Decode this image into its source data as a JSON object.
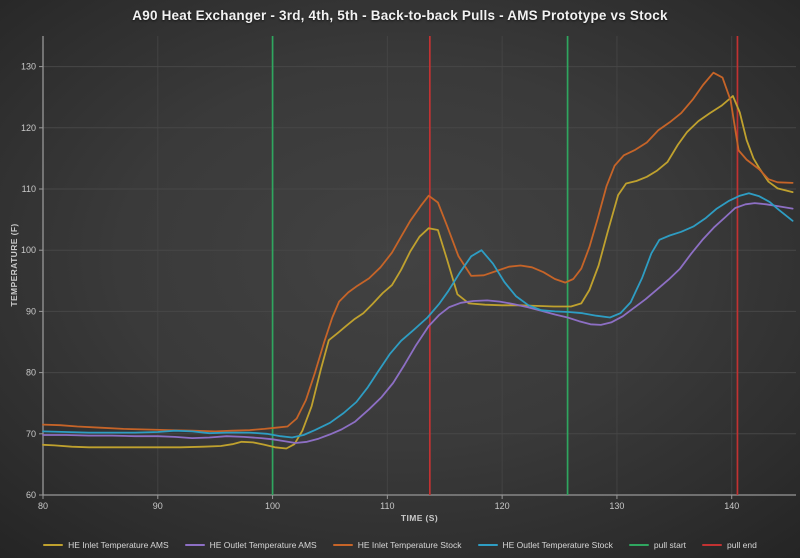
{
  "header": {
    "title": "A90 Heat Exchanger - 3rd, 4th, 5th - Back-to-back Pulls - AMS Prototype vs Stock"
  },
  "chart_data": {
    "type": "line",
    "title": "A90 Heat Exchanger - 3rd, 4th, 5th - Back-to-back Pulls - AMS Prototype vs Stock",
    "xlabel": "TIME (S)",
    "ylabel": "TEMPERATURE (F)",
    "xlim": [
      80,
      145.6
    ],
    "ylim": [
      60,
      135
    ],
    "xticks": [
      80,
      90,
      100,
      110,
      120,
      130,
      140
    ],
    "yticks": [
      60,
      70,
      80,
      90,
      100,
      110,
      120,
      130
    ],
    "grid": true,
    "legend_position": "bottom",
    "series": [
      {
        "name": "HE Inlet Temperature AMS",
        "color": "#bfa12e",
        "points": [
          [
            80,
            68.2
          ],
          [
            81,
            68.1
          ],
          [
            82.5,
            67.9
          ],
          [
            84,
            67.8
          ],
          [
            86,
            67.8
          ],
          [
            88,
            67.8
          ],
          [
            90,
            67.8
          ],
          [
            92,
            67.8
          ],
          [
            94,
            67.9
          ],
          [
            95.5,
            68.0
          ],
          [
            96.5,
            68.3
          ],
          [
            97.3,
            68.7
          ],
          [
            98.3,
            68.6
          ],
          [
            99.3,
            68.2
          ],
          [
            100.2,
            67.8
          ],
          [
            101.2,
            67.6
          ],
          [
            101.9,
            68.3
          ],
          [
            102.6,
            70.5
          ],
          [
            103.4,
            74.5
          ],
          [
            104.2,
            80.5
          ],
          [
            104.9,
            85.3
          ],
          [
            105.7,
            86.5
          ],
          [
            106.4,
            87.6
          ],
          [
            107.1,
            88.7
          ],
          [
            107.9,
            89.7
          ],
          [
            108.7,
            91.2
          ],
          [
            109.6,
            93.0
          ],
          [
            110.4,
            94.3
          ],
          [
            111.2,
            96.8
          ],
          [
            112.0,
            99.8
          ],
          [
            112.8,
            102.2
          ],
          [
            113.6,
            103.6
          ],
          [
            114.4,
            103.3
          ],
          [
            115.2,
            98.5
          ],
          [
            116.1,
            92.8
          ],
          [
            117.1,
            91.3
          ],
          [
            118.5,
            91.1
          ],
          [
            120,
            91.0
          ],
          [
            121.5,
            91.0
          ],
          [
            123,
            90.9
          ],
          [
            124.5,
            90.8
          ],
          [
            126,
            90.8
          ],
          [
            126.9,
            91.3
          ],
          [
            127.6,
            93.5
          ],
          [
            128.4,
            97.5
          ],
          [
            129.2,
            103.0
          ],
          [
            130.1,
            109.0
          ],
          [
            130.8,
            110.9
          ],
          [
            131.7,
            111.3
          ],
          [
            132.6,
            112.0
          ],
          [
            133.5,
            113.0
          ],
          [
            134.4,
            114.4
          ],
          [
            135.3,
            117.2
          ],
          [
            136.1,
            119.3
          ],
          [
            137.1,
            121.1
          ],
          [
            138.1,
            122.4
          ],
          [
            139.1,
            123.6
          ],
          [
            140.1,
            125.2
          ],
          [
            140.7,
            122.5
          ],
          [
            141.3,
            118.0
          ],
          [
            141.9,
            115.0
          ],
          [
            142.4,
            113.4
          ],
          [
            143.2,
            111.2
          ],
          [
            144.0,
            110.1
          ],
          [
            145.3,
            109.5
          ]
        ]
      },
      {
        "name": "HE Outlet Temperature AMS",
        "color": "#8d6fc4",
        "points": [
          [
            80,
            69.8
          ],
          [
            82,
            69.8
          ],
          [
            84,
            69.7
          ],
          [
            86,
            69.7
          ],
          [
            88,
            69.6
          ],
          [
            90,
            69.6
          ],
          [
            91.5,
            69.5
          ],
          [
            93,
            69.3
          ],
          [
            94.5,
            69.4
          ],
          [
            96,
            69.6
          ],
          [
            97.5,
            69.5
          ],
          [
            99,
            69.3
          ],
          [
            100,
            69.1
          ],
          [
            101,
            68.8
          ],
          [
            102,
            68.5
          ],
          [
            103,
            68.7
          ],
          [
            104,
            69.2
          ],
          [
            105,
            69.9
          ],
          [
            106,
            70.7
          ],
          [
            107.2,
            72.0
          ],
          [
            108.4,
            74.0
          ],
          [
            109.5,
            76.0
          ],
          [
            110.5,
            78.3
          ],
          [
            111.5,
            81.3
          ],
          [
            112.5,
            84.5
          ],
          [
            113.6,
            87.6
          ],
          [
            114.5,
            89.4
          ],
          [
            115.4,
            90.7
          ],
          [
            116.4,
            91.4
          ],
          [
            117.5,
            91.7
          ],
          [
            118.7,
            91.8
          ],
          [
            119.8,
            91.6
          ],
          [
            121,
            91.2
          ],
          [
            122.2,
            90.7
          ],
          [
            123.4,
            90.1
          ],
          [
            124.6,
            89.5
          ],
          [
            125.7,
            89.0
          ],
          [
            126.7,
            88.4
          ],
          [
            127.7,
            87.9
          ],
          [
            128.6,
            87.8
          ],
          [
            129.5,
            88.2
          ],
          [
            130.5,
            89.2
          ],
          [
            131.5,
            90.6
          ],
          [
            132.5,
            92.0
          ],
          [
            133.5,
            93.6
          ],
          [
            134.5,
            95.2
          ],
          [
            135.5,
            97.0
          ],
          [
            136.5,
            99.5
          ],
          [
            137.5,
            101.8
          ],
          [
            138.5,
            103.8
          ],
          [
            139.5,
            105.5
          ],
          [
            140.3,
            106.9
          ],
          [
            141.2,
            107.5
          ],
          [
            142.0,
            107.7
          ],
          [
            143.0,
            107.5
          ],
          [
            144.0,
            107.2
          ],
          [
            145.3,
            106.8
          ]
        ]
      },
      {
        "name": "HE Inlet Temperature Stock",
        "color": "#c66428",
        "points": [
          [
            80,
            71.5
          ],
          [
            81.5,
            71.4
          ],
          [
            83,
            71.2
          ],
          [
            85,
            71.0
          ],
          [
            87,
            70.8
          ],
          [
            89,
            70.7
          ],
          [
            91,
            70.6
          ],
          [
            93,
            70.5
          ],
          [
            95,
            70.4
          ],
          [
            96.5,
            70.5
          ],
          [
            98,
            70.6
          ],
          [
            99.3,
            70.8
          ],
          [
            100.3,
            71.0
          ],
          [
            101.3,
            71.2
          ],
          [
            102.1,
            72.5
          ],
          [
            102.9,
            75.5
          ],
          [
            103.7,
            80.0
          ],
          [
            104.5,
            85.0
          ],
          [
            105.2,
            89.0
          ],
          [
            105.8,
            91.6
          ],
          [
            106.6,
            93.1
          ],
          [
            107.4,
            94.2
          ],
          [
            108.4,
            95.4
          ],
          [
            109.4,
            97.2
          ],
          [
            110.4,
            99.6
          ],
          [
            111.2,
            102.2
          ],
          [
            112.0,
            104.8
          ],
          [
            112.9,
            107.2
          ],
          [
            113.6,
            108.9
          ],
          [
            114.4,
            107.8
          ],
          [
            115.2,
            104.0
          ],
          [
            116.2,
            99.0
          ],
          [
            117.3,
            95.8
          ],
          [
            118.4,
            95.9
          ],
          [
            119.5,
            96.6
          ],
          [
            120.6,
            97.3
          ],
          [
            121.6,
            97.5
          ],
          [
            122.6,
            97.2
          ],
          [
            123.6,
            96.4
          ],
          [
            124.6,
            95.3
          ],
          [
            125.5,
            94.7
          ],
          [
            126.2,
            95.3
          ],
          [
            126.9,
            97.0
          ],
          [
            127.6,
            100.5
          ],
          [
            128.3,
            105.0
          ],
          [
            129.1,
            110.5
          ],
          [
            129.8,
            113.8
          ],
          [
            130.6,
            115.5
          ],
          [
            131.6,
            116.4
          ],
          [
            132.6,
            117.6
          ],
          [
            133.6,
            119.6
          ],
          [
            134.6,
            120.9
          ],
          [
            135.6,
            122.4
          ],
          [
            136.6,
            124.6
          ],
          [
            137.5,
            127.0
          ],
          [
            138.4,
            129.0
          ],
          [
            139.2,
            128.2
          ],
          [
            139.9,
            124.5
          ],
          [
            140.6,
            116.3
          ],
          [
            141.3,
            114.8
          ],
          [
            142.4,
            113.2
          ],
          [
            143.2,
            111.6
          ],
          [
            144.0,
            111.1
          ],
          [
            145.3,
            111.0
          ]
        ]
      },
      {
        "name": "HE Outlet Temperature Stock",
        "color": "#2e9dc3",
        "points": [
          [
            80,
            70.4
          ],
          [
            82,
            70.3
          ],
          [
            84,
            70.2
          ],
          [
            86,
            70.2
          ],
          [
            88,
            70.2
          ],
          [
            90,
            70.3
          ],
          [
            91.5,
            70.5
          ],
          [
            93,
            70.4
          ],
          [
            94.5,
            70.1
          ],
          [
            96,
            70.2
          ],
          [
            98,
            70.2
          ],
          [
            99.5,
            70.0
          ],
          [
            100.7,
            69.6
          ],
          [
            101.7,
            69.4
          ],
          [
            102.7,
            69.8
          ],
          [
            103.7,
            70.6
          ],
          [
            105,
            71.8
          ],
          [
            106.2,
            73.4
          ],
          [
            107.3,
            75.2
          ],
          [
            108.3,
            77.6
          ],
          [
            109.2,
            80.2
          ],
          [
            110.2,
            83.0
          ],
          [
            111.2,
            85.2
          ],
          [
            112.3,
            87.0
          ],
          [
            113.5,
            89.0
          ],
          [
            114.5,
            91.2
          ],
          [
            115.3,
            93.3
          ],
          [
            116.3,
            96.3
          ],
          [
            117.3,
            99.0
          ],
          [
            118.2,
            100.0
          ],
          [
            119.2,
            97.8
          ],
          [
            120.2,
            94.8
          ],
          [
            121.2,
            92.5
          ],
          [
            122.3,
            91.0
          ],
          [
            123.4,
            90.2
          ],
          [
            124.6,
            90.0
          ],
          [
            125.8,
            89.9
          ],
          [
            127,
            89.7
          ],
          [
            128.2,
            89.3
          ],
          [
            129.4,
            89.0
          ],
          [
            130.3,
            89.7
          ],
          [
            131.2,
            91.5
          ],
          [
            132.2,
            95.5
          ],
          [
            133.0,
            99.5
          ],
          [
            133.7,
            101.7
          ],
          [
            134.6,
            102.4
          ],
          [
            135.6,
            103.0
          ],
          [
            136.7,
            103.9
          ],
          [
            137.7,
            105.2
          ],
          [
            138.7,
            106.8
          ],
          [
            139.7,
            108.0
          ],
          [
            140.7,
            108.9
          ],
          [
            141.5,
            109.3
          ],
          [
            142.4,
            108.8
          ],
          [
            143.3,
            107.9
          ],
          [
            144.1,
            106.6
          ],
          [
            145.3,
            104.8
          ]
        ]
      }
    ],
    "vlines": [
      {
        "name": "pull start",
        "color": "#2fa65f",
        "x": [
          100,
          125.7
        ]
      },
      {
        "name": "pull end",
        "color": "#c23232",
        "x": [
          113.7,
          140.5
        ]
      }
    ]
  },
  "colors": {
    "background_center": "#424242",
    "background_edge": "#232323",
    "grid": "#474747",
    "spine": "#989898",
    "tick_text": "#c9c9c9",
    "title_text": "#f2f2f2",
    "legend_text": "#d6d6d6"
  }
}
